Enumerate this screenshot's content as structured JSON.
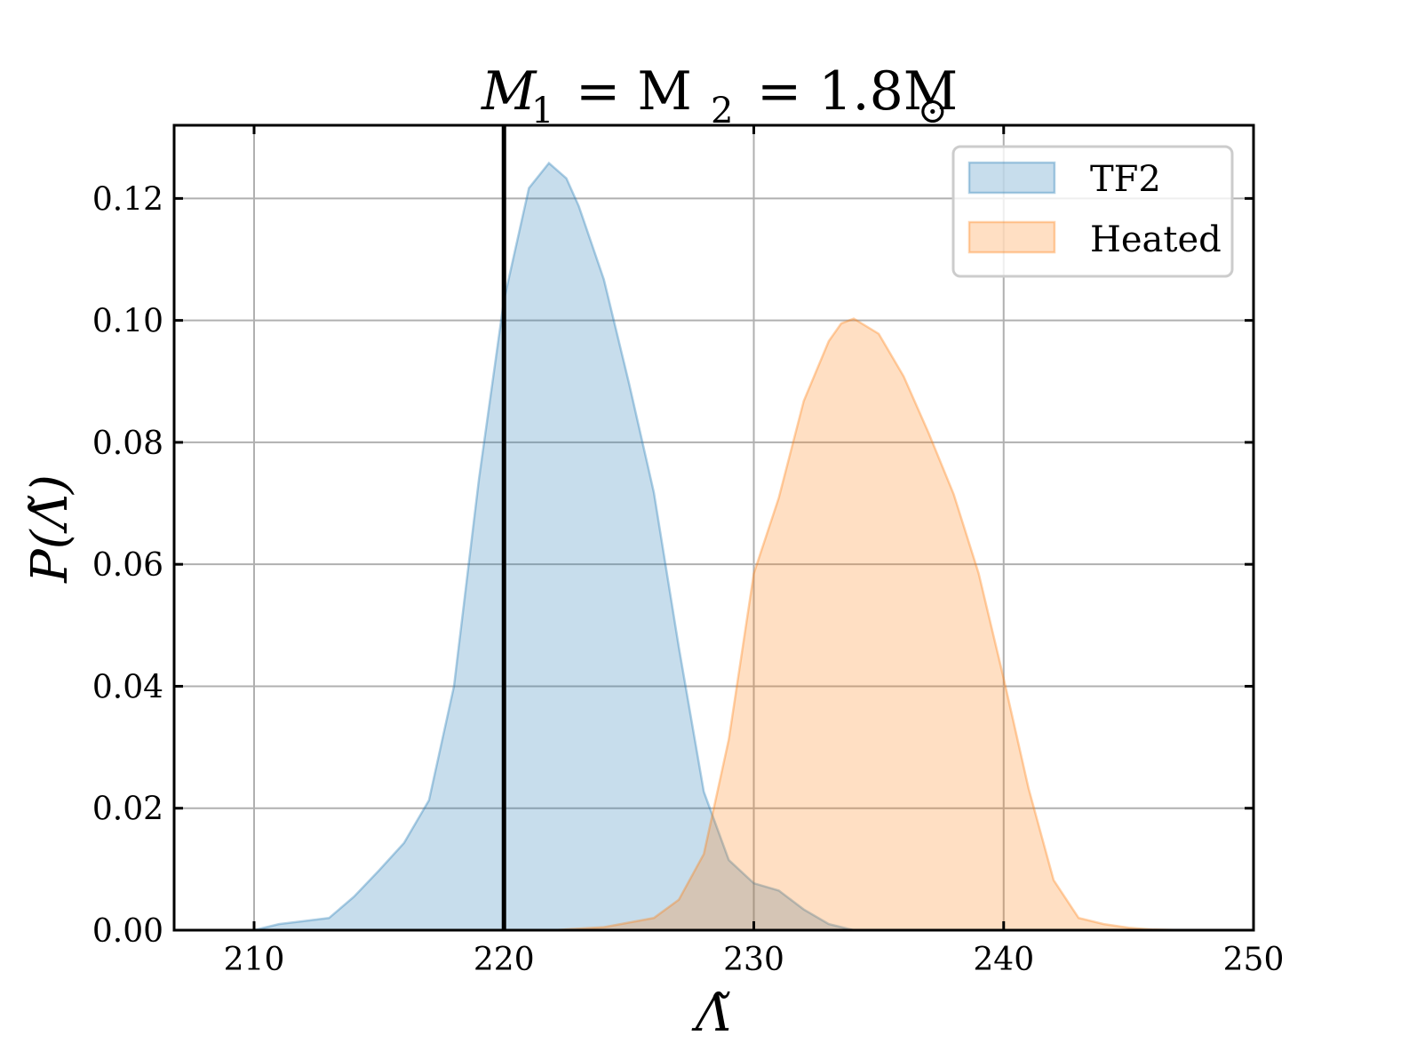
{
  "chart_data": {
    "type": "area",
    "title": {
      "main": "M",
      "sub1": "1",
      "mid": "= M",
      "sub2": "2",
      "value": "= 1.8M",
      "sun": "⊙"
    },
    "xlabel": "Λ̃",
    "ylabel": "P(Λ̃)",
    "xlim": [
      206.8,
      250
    ],
    "ylim": [
      0,
      0.132
    ],
    "xticks": [
      210,
      220,
      230,
      240,
      250
    ],
    "xtick_labels": [
      "210",
      "220",
      "230",
      "240",
      "250"
    ],
    "yticks": [
      0.0,
      0.02,
      0.04,
      0.06,
      0.08,
      0.1,
      0.12
    ],
    "ytick_labels": [
      "0.00",
      "0.02",
      "0.04",
      "0.06",
      "0.08",
      "0.10",
      "0.12"
    ],
    "grid": true,
    "legend_position": "top-right",
    "vertical_line": {
      "x": 220.0,
      "color": "#000000"
    },
    "series": [
      {
        "name": "TF2",
        "color": "#1f77b4",
        "fill_opacity": 0.25,
        "x": [
          210,
          211,
          212,
          213,
          214,
          215,
          216,
          217,
          218,
          219,
          220,
          221,
          221.8,
          222.5,
          223,
          224,
          225,
          226,
          227,
          228,
          229,
          230,
          231,
          232,
          233,
          234
        ],
        "y": [
          0.0,
          0.001,
          0.0015,
          0.002,
          0.0055,
          0.0098,
          0.0143,
          0.0213,
          0.04,
          0.074,
          0.1033,
          0.1217,
          0.1258,
          0.1233,
          0.1187,
          0.1067,
          0.0898,
          0.0718,
          0.0464,
          0.0227,
          0.0115,
          0.0077,
          0.0065,
          0.0034,
          0.001,
          0.0
        ]
      },
      {
        "name": "Heated",
        "color": "#ff7f0e",
        "fill_opacity": 0.25,
        "x": [
          222,
          224,
          226,
          227,
          228,
          229,
          230,
          231,
          232,
          233,
          233.5,
          234,
          235,
          236,
          237,
          238,
          239,
          240,
          241,
          242,
          243,
          244,
          245,
          246,
          247,
          248
        ],
        "y": [
          0.0,
          0.0005,
          0.002,
          0.005,
          0.0125,
          0.0313,
          0.0585,
          0.0709,
          0.0868,
          0.0966,
          0.0995,
          0.1003,
          0.0978,
          0.0908,
          0.0815,
          0.0715,
          0.0585,
          0.0413,
          0.0232,
          0.0082,
          0.002,
          0.001,
          0.0004,
          0.0001,
          2e-05,
          0.0
        ]
      }
    ]
  }
}
